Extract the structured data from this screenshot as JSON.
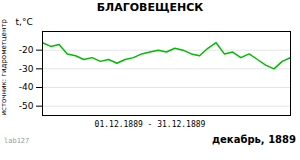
{
  "chart_data": {
    "type": "line",
    "title": "БЛАГОВЕЩЕНСК",
    "ylabel": "t,°C",
    "xlabel": "01.12.1889 - 31.12.1889",
    "annotations": [
      "декабрь, 1889",
      "источник: гидрометцентр",
      "lab127"
    ],
    "x": [
      1,
      2,
      3,
      4,
      5,
      6,
      7,
      8,
      9,
      10,
      11,
      12,
      13,
      14,
      15,
      16,
      17,
      18,
      19,
      20,
      21,
      22,
      23,
      24,
      25,
      26,
      27,
      28,
      29,
      30,
      31
    ],
    "values": [
      -16,
      -18,
      -17,
      -22,
      -23,
      -25,
      -24,
      -26,
      -25,
      -27,
      -25,
      -24,
      -22,
      -21,
      -20,
      -21,
      -19,
      -20,
      -22,
      -23,
      -19,
      -16,
      -22,
      -21,
      -24,
      -22,
      -25,
      -28,
      -30,
      -26,
      -24
    ],
    "color": "#00bb00",
    "xlim": [
      1,
      31
    ],
    "ylim": [
      -55,
      -10
    ],
    "yticks": [
      -50,
      -40,
      -30,
      -20
    ],
    "grid": true,
    "tick_labels": "y"
  }
}
